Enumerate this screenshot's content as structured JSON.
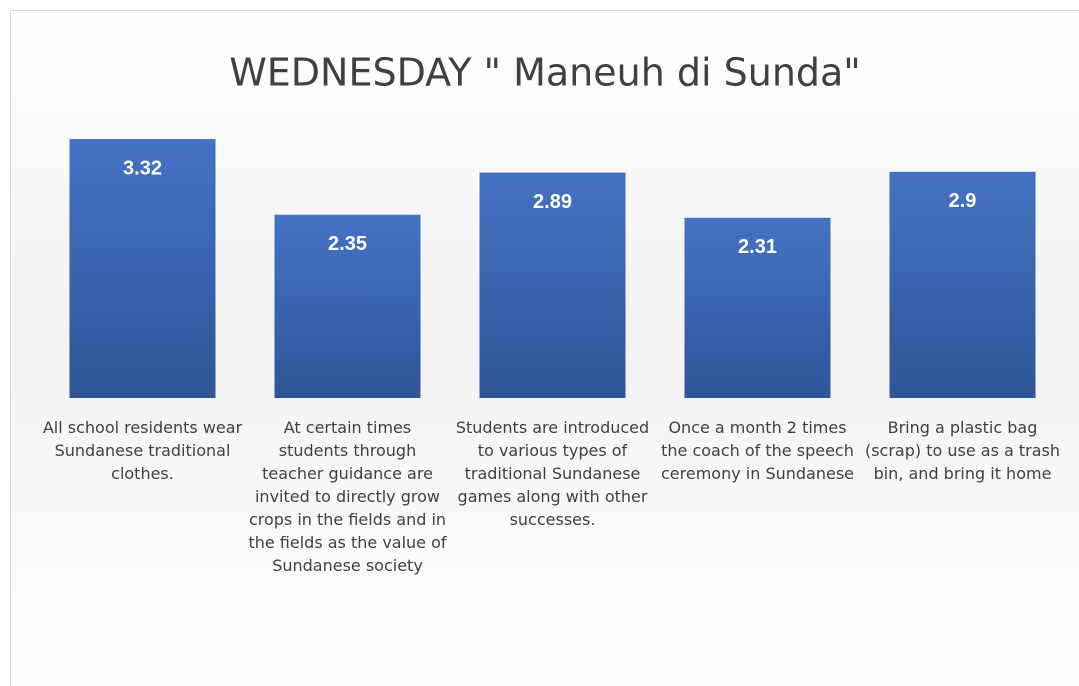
{
  "chart_data": {
    "type": "bar",
    "title": "WEDNESDAY \" Maneuh di Sunda\"",
    "categories": [
      "All school residents wear Sundanese traditional clothes.",
      "At certain times students through teacher guidance are invited to directly grow crops in the fields and in the fields as the value of Sundanese society",
      "Students are introduced to various types of traditional Sundanese games along with other successes.",
      "Once a month 2 times the coach of the speech ceremony in Sundanese",
      "Bring a plastic bag (scrap) to use as a trash bin, and bring it home"
    ],
    "values": [
      3.32,
      2.35,
      2.89,
      2.31,
      2.9
    ],
    "color": "#4472c4",
    "ylim": [
      0,
      3.5
    ]
  }
}
